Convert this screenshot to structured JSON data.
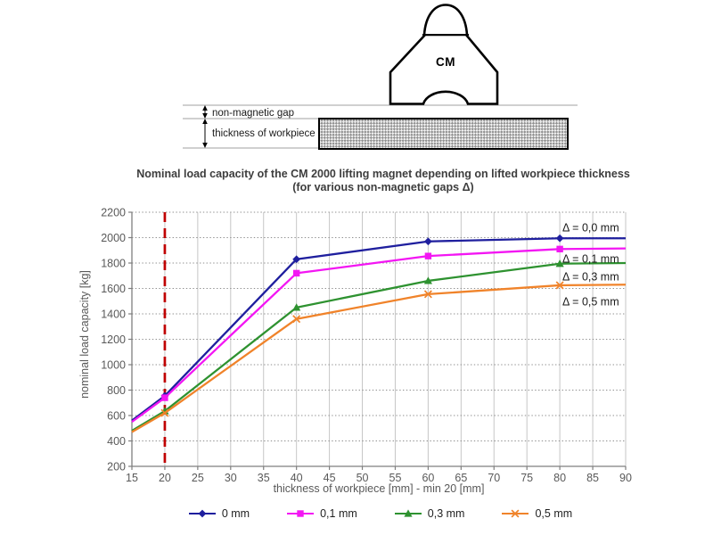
{
  "diagram": {
    "magnet_label": "CM",
    "gap_label": "non-magnetic gap",
    "thickness_label": "thickness of workpiece"
  },
  "title": {
    "line1": "Nominal load capacity of the CM 2000 lifting magnet depending on lifted workpiece thickness",
    "line2": "(for various non-magnetic gaps Δ)"
  },
  "chart_data": {
    "type": "line",
    "title": "Nominal load capacity of the CM 2000 lifting magnet depending on lifted workpiece thickness (for various non-magnetic gaps Δ)",
    "xlabel": "thickness of workpiece [mm] - min 20 [mm]",
    "ylabel": "nominal load capacity [kg]",
    "xlim": [
      15,
      90
    ],
    "ylim": [
      200,
      2200
    ],
    "x_tick_step": 5,
    "y_tick_step": 200,
    "x_ticks": [
      "15",
      "20",
      "25",
      "30",
      "35",
      "40",
      "45",
      "50",
      "55",
      "60",
      "65",
      "70",
      "75",
      "80",
      "85",
      "90"
    ],
    "y_ticks": [
      "200",
      "400",
      "600",
      "800",
      "1000",
      "1200",
      "1400",
      "1600",
      "1800",
      "2000",
      "2200"
    ],
    "grid": true,
    "legend_position": "bottom",
    "x": [
      15,
      20,
      40,
      60,
      80,
      90
    ],
    "series": [
      {
        "name": "0 mm",
        "gap": "Δ = 0,0 mm",
        "color": "#1f1f9e",
        "marker": "diamond",
        "values": [
          560,
          755,
          1830,
          1970,
          1995,
          1995
        ]
      },
      {
        "name": "0,1 mm",
        "gap": "Δ = 0,1 mm",
        "color": "#f316f3",
        "marker": "square",
        "values": [
          550,
          740,
          1720,
          1855,
          1910,
          1915
        ]
      },
      {
        "name": "0,3 mm",
        "gap": "Δ = 0,3 mm",
        "color": "#2e9230",
        "marker": "triangle",
        "values": [
          480,
          635,
          1450,
          1660,
          1795,
          1800
        ]
      },
      {
        "name": "0,5 mm",
        "gap": "Δ = 0,5 mm",
        "color": "#f0832a",
        "marker": "x",
        "values": [
          470,
          620,
          1360,
          1555,
          1625,
          1630
        ]
      }
    ],
    "reference_line": {
      "x": 20,
      "color": "#c00000",
      "style": "dashed",
      "meaning": "min 20 mm"
    },
    "annotations": [
      {
        "text": "Δ = 0,0 mm",
        "x": 84.7,
        "y": 2080
      },
      {
        "text": "Δ = 0,1 mm",
        "x": 84.7,
        "y": 1835
      },
      {
        "text": "Δ = 0,3 mm",
        "x": 84.7,
        "y": 1695
      },
      {
        "text": "Δ = 0,5 mm",
        "x": 84.7,
        "y": 1500
      }
    ]
  }
}
